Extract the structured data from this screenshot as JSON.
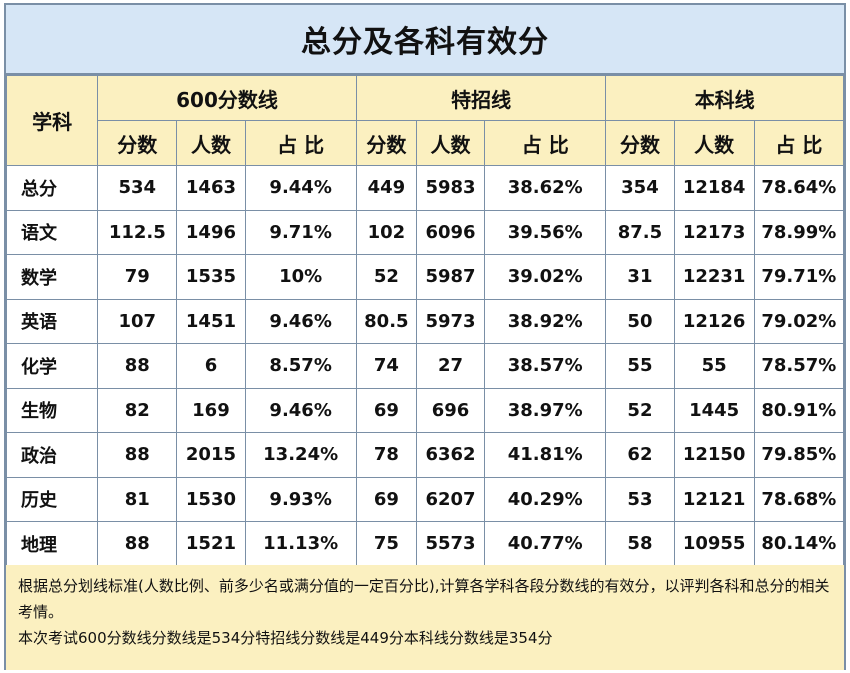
{
  "title": "总分及各科有效分",
  "header": {
    "subject": "学科",
    "groups": [
      "600分数线",
      "特招线",
      "本科线"
    ],
    "cols": [
      "分数",
      "人数",
      "占 比"
    ]
  },
  "rows": [
    {
      "subject": "总分",
      "g1": [
        "534",
        "1463",
        "9.44%"
      ],
      "g2": [
        "449",
        "5983",
        "38.62%"
      ],
      "g3": [
        "354",
        "12184",
        "78.64%"
      ]
    },
    {
      "subject": "语文",
      "g1": [
        "112.5",
        "1496",
        "9.71%"
      ],
      "g2": [
        "102",
        "6096",
        "39.56%"
      ],
      "g3": [
        "87.5",
        "12173",
        "78.99%"
      ]
    },
    {
      "subject": "数学",
      "g1": [
        "79",
        "1535",
        "10%"
      ],
      "g2": [
        "52",
        "5987",
        "39.02%"
      ],
      "g3": [
        "31",
        "12231",
        "79.71%"
      ]
    },
    {
      "subject": "英语",
      "g1": [
        "107",
        "1451",
        "9.46%"
      ],
      "g2": [
        "80.5",
        "5973",
        "38.92%"
      ],
      "g3": [
        "50",
        "12126",
        "79.02%"
      ]
    },
    {
      "subject": "化学",
      "g1": [
        "88",
        "6",
        "8.57%"
      ],
      "g2": [
        "74",
        "27",
        "38.57%"
      ],
      "g3": [
        "55",
        "55",
        "78.57%"
      ]
    },
    {
      "subject": "生物",
      "g1": [
        "82",
        "169",
        "9.46%"
      ],
      "g2": [
        "69",
        "696",
        "38.97%"
      ],
      "g3": [
        "52",
        "1445",
        "80.91%"
      ]
    },
    {
      "subject": "政治",
      "g1": [
        "88",
        "2015",
        "13.24%"
      ],
      "g2": [
        "78",
        "6362",
        "41.81%"
      ],
      "g3": [
        "62",
        "12150",
        "79.85%"
      ]
    },
    {
      "subject": "历史",
      "g1": [
        "81",
        "1530",
        "9.93%"
      ],
      "g2": [
        "69",
        "6207",
        "40.29%"
      ],
      "g3": [
        "53",
        "12121",
        "78.68%"
      ]
    },
    {
      "subject": "地理",
      "g1": [
        "88",
        "1521",
        "11.13%"
      ],
      "g2": [
        "75",
        "5573",
        "40.77%"
      ],
      "g3": [
        "58",
        "10955",
        "80.14%"
      ]
    }
  ],
  "notes": [
    "根据总分划线标准(人数比例、前多少名或满分值的一定百分比),计算各学科各段分数线的有效分，以评判各科和总分的相关考情。",
    "本次考试600分数线分数线是534分特招线分数线是449分本科线分数线是354分"
  ]
}
